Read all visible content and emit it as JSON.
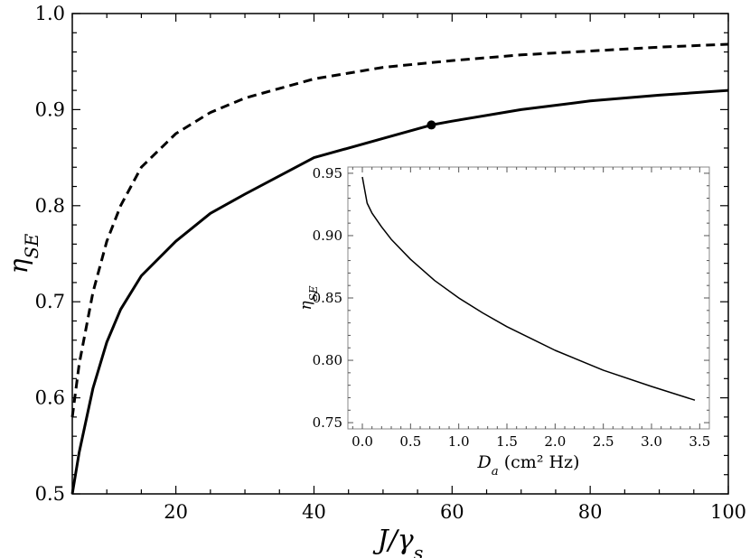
{
  "chart_data": [
    {
      "type": "line",
      "title": "",
      "xlabel": "J/γs",
      "ylabel": "ηSE",
      "xlim": [
        5,
        100
      ],
      "ylim": [
        0.5,
        1.0
      ],
      "x_ticks": [
        20,
        40,
        60,
        80,
        100
      ],
      "x_tick_labels": [
        "20",
        "40",
        "60",
        "80",
        "100"
      ],
      "y_ticks": [
        0.5,
        0.6,
        0.7,
        0.8,
        0.9,
        1.0
      ],
      "y_tick_labels": [
        "0.5",
        "0.6",
        "0.7",
        "0.8",
        "0.9",
        "1.0"
      ],
      "grid": false,
      "series": [
        {
          "style": "dashed",
          "color": "#000000",
          "x": [
            5,
            6,
            8,
            10,
            12,
            15,
            20,
            25,
            30,
            40,
            50,
            60,
            70,
            80,
            90,
            100
          ],
          "values": [
            0.58,
            0.635,
            0.71,
            0.763,
            0.8,
            0.84,
            0.875,
            0.897,
            0.912,
            0.932,
            0.944,
            0.951,
            0.957,
            0.961,
            0.965,
            0.968
          ]
        },
        {
          "style": "solid",
          "color": "#000000",
          "x": [
            5,
            6,
            8,
            10,
            12,
            15,
            20,
            25,
            30,
            40,
            50,
            57,
            60,
            70,
            80,
            90,
            100
          ],
          "values": [
            0.5,
            0.543,
            0.61,
            0.658,
            0.692,
            0.727,
            0.763,
            0.792,
            0.812,
            0.85,
            0.87,
            0.884,
            0.888,
            0.9,
            0.909,
            0.915,
            0.92
          ]
        }
      ],
      "markers": [
        {
          "x": 57,
          "y": 0.884,
          "color": "#000000"
        }
      ]
    },
    {
      "type": "line",
      "title": "",
      "xlabel": "Da (cm² Hz)",
      "ylabel": "ηSE",
      "xlim": [
        -0.15,
        3.6
      ],
      "ylim": [
        0.745,
        0.955
      ],
      "x_ticks": [
        0.0,
        0.5,
        1.0,
        1.5,
        2.0,
        2.5,
        3.0,
        3.5
      ],
      "x_tick_labels": [
        "0.0",
        "0.5",
        "1.0",
        "1.5",
        "2.0",
        "2.5",
        "3.0",
        "3.5"
      ],
      "y_ticks": [
        0.75,
        0.8,
        0.85,
        0.9,
        0.95
      ],
      "y_tick_labels": [
        "0.75",
        "0.80",
        "0.85",
        "0.90",
        "0.95"
      ],
      "grid": false,
      "series": [
        {
          "style": "solid",
          "color": "#000000",
          "x": [
            0.0,
            0.05,
            0.1,
            0.2,
            0.3,
            0.5,
            0.75,
            1.0,
            1.25,
            1.5,
            2.0,
            2.5,
            3.0,
            3.45
          ],
          "values": [
            0.947,
            0.926,
            0.918,
            0.907,
            0.897,
            0.881,
            0.864,
            0.85,
            0.838,
            0.827,
            0.808,
            0.792,
            0.779,
            0.768
          ]
        }
      ]
    }
  ]
}
